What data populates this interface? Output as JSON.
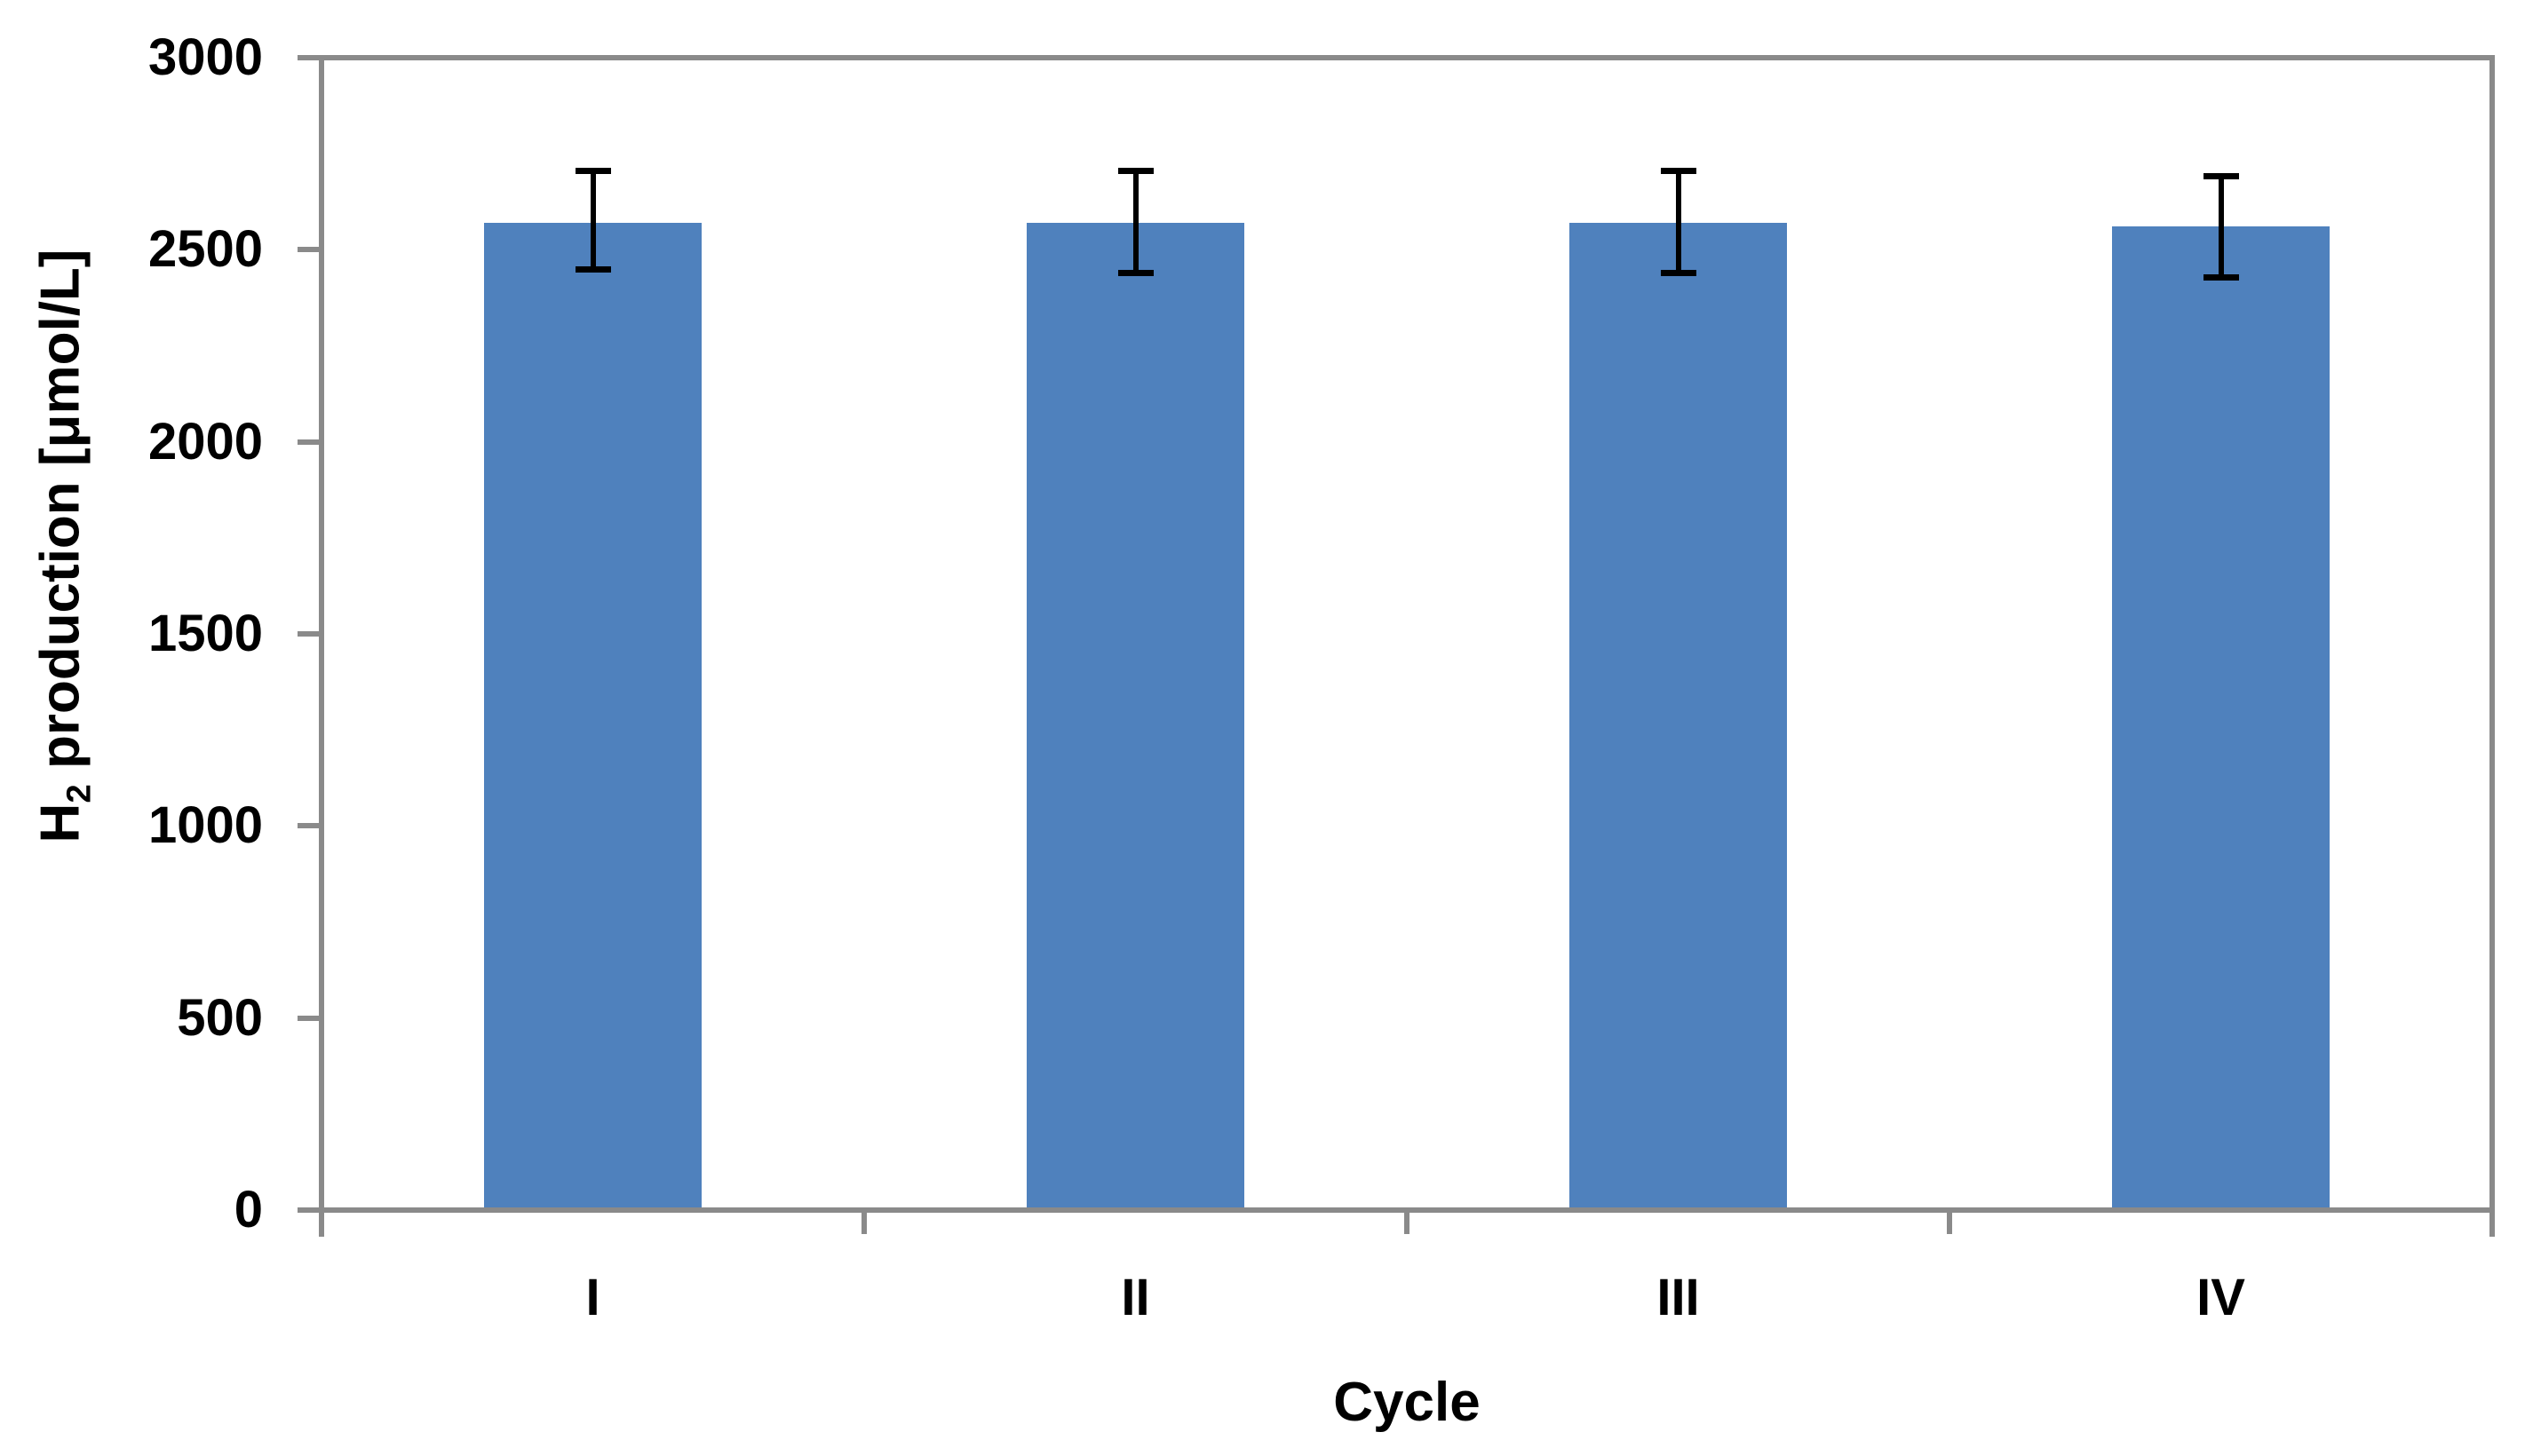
{
  "chart_data": {
    "type": "bar",
    "title": "",
    "xlabel": "Cycle",
    "ylabel": {
      "full": "H₂ production [μmol/L]",
      "prefix": "H",
      "subscript": "2",
      "rest": " production [μmol/L]"
    },
    "categories": [
      "I",
      "II",
      "III",
      "IV"
    ],
    "values": [
      2570,
      2570,
      2570,
      2560
    ],
    "error_high": [
      2705,
      2705,
      2705,
      2690
    ],
    "error_low": [
      2450,
      2440,
      2440,
      2430
    ],
    "ylim": [
      0,
      3000
    ],
    "yticks": [
      0,
      500,
      1000,
      1500,
      2000,
      2500,
      3000
    ],
    "grid": false,
    "legend": "none",
    "layout_hints": {
      "bar_width_fraction": 0.4,
      "plot_border": "top, left, right, bottom",
      "tick_style": "outside"
    },
    "colors": {
      "bar": "#4F81BD",
      "axis": "#8A8A8A",
      "error_bar": "#000000",
      "text": "#000000",
      "background": "#FFFFFF"
    }
  }
}
